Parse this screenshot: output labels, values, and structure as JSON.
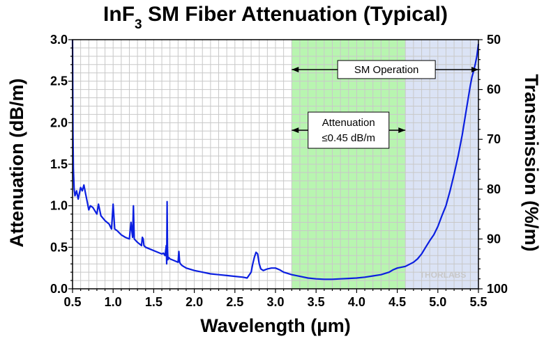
{
  "chart_data": {
    "type": "line",
    "title": "InF",
    "title_sub": "3",
    "title_rest": " SM Fiber Attenuation (Typical)",
    "xlabel": "Wavelength (µm)",
    "ylabel": "Attenuation (dB/m)",
    "y2label": "Transmission (%/m)",
    "xlim": [
      0.5,
      5.5
    ],
    "ylim": [
      0.0,
      3.0
    ],
    "y2lim": [
      50,
      100
    ],
    "x_ticks": [
      "0.5",
      "1.0",
      "1.5",
      "2.0",
      "2.5",
      "3.0",
      "3.5",
      "4.0",
      "4.5",
      "5.0",
      "5.5"
    ],
    "y_ticks": [
      "0.0",
      "0.5",
      "1.0",
      "1.5",
      "2.0",
      "2.5",
      "3.0"
    ],
    "y2_ticks": [
      "50",
      "60",
      "70",
      "80",
      "90",
      "100"
    ],
    "y2_ticks_values": [
      50,
      60,
      70,
      80,
      90,
      100
    ],
    "grid": true,
    "series_color": "#0b1fe0",
    "regions": [
      {
        "x": [
          3.2,
          4.6
        ],
        "color": "#b8f5b0"
      },
      {
        "x": [
          4.6,
          5.5
        ],
        "color": "#dbe3f5"
      }
    ],
    "annotations": [
      {
        "text": "SM Operation",
        "x_range": [
          3.2,
          5.5
        ],
        "y": 2.64
      },
      {
        "text_lines": [
          "Attenuation",
          "≤0.45 dB/m"
        ],
        "x_range": [
          3.2,
          4.6
        ],
        "y": 1.91
      }
    ],
    "watermark": "THORLABS",
    "x": [
      0.5,
      0.505,
      0.51,
      0.52,
      0.53,
      0.55,
      0.57,
      0.6,
      0.62,
      0.64,
      0.66,
      0.68,
      0.7,
      0.72,
      0.75,
      0.8,
      0.82,
      0.85,
      0.9,
      0.95,
      0.98,
      1.0,
      1.02,
      1.05,
      1.1,
      1.15,
      1.2,
      1.22,
      1.24,
      1.25,
      1.26,
      1.3,
      1.35,
      1.36,
      1.37,
      1.38,
      1.4,
      1.45,
      1.5,
      1.55,
      1.6,
      1.62,
      1.64,
      1.655,
      1.66,
      1.665,
      1.67,
      1.675,
      1.68,
      1.7,
      1.75,
      1.8,
      1.81,
      1.82,
      1.83,
      1.85,
      1.9,
      2.0,
      2.1,
      2.2,
      2.3,
      2.4,
      2.5,
      2.6,
      2.65,
      2.7,
      2.72,
      2.74,
      2.76,
      2.78,
      2.8,
      2.82,
      2.85,
      2.9,
      2.95,
      3.0,
      3.05,
      3.1,
      3.2,
      3.3,
      3.4,
      3.5,
      3.6,
      3.7,
      3.8,
      3.9,
      4.0,
      4.1,
      4.2,
      4.3,
      4.4,
      4.45,
      4.5,
      4.6,
      4.7,
      4.75,
      4.8,
      4.85,
      4.9,
      4.95,
      5.0,
      5.05,
      5.1,
      5.15,
      5.2,
      5.25,
      5.3,
      5.35,
      5.4,
      5.42,
      5.44,
      5.46,
      5.48,
      5.5
    ],
    "y": [
      3.0,
      1.9,
      1.45,
      1.2,
      1.12,
      1.18,
      1.08,
      1.22,
      1.18,
      1.25,
      1.15,
      1.05,
      0.95,
      1.0,
      0.98,
      0.9,
      1.02,
      0.88,
      0.82,
      0.78,
      0.72,
      1.02,
      0.72,
      0.7,
      0.65,
      0.62,
      0.6,
      0.8,
      0.62,
      1.0,
      0.6,
      0.56,
      0.52,
      0.62,
      0.6,
      0.52,
      0.5,
      0.48,
      0.46,
      0.44,
      0.42,
      0.43,
      0.4,
      0.52,
      0.3,
      1.05,
      0.5,
      0.35,
      0.38,
      0.36,
      0.34,
      0.32,
      0.45,
      0.32,
      0.3,
      0.28,
      0.25,
      0.22,
      0.2,
      0.18,
      0.17,
      0.16,
      0.15,
      0.14,
      0.13,
      0.2,
      0.3,
      0.38,
      0.44,
      0.42,
      0.3,
      0.24,
      0.22,
      0.24,
      0.25,
      0.25,
      0.23,
      0.2,
      0.17,
      0.15,
      0.13,
      0.12,
      0.115,
      0.115,
      0.12,
      0.125,
      0.13,
      0.14,
      0.155,
      0.17,
      0.2,
      0.23,
      0.25,
      0.27,
      0.32,
      0.36,
      0.42,
      0.5,
      0.58,
      0.65,
      0.75,
      0.88,
      1.0,
      1.18,
      1.38,
      1.6,
      1.85,
      2.15,
      2.45,
      2.55,
      2.62,
      2.7,
      2.8,
      2.95
    ]
  }
}
